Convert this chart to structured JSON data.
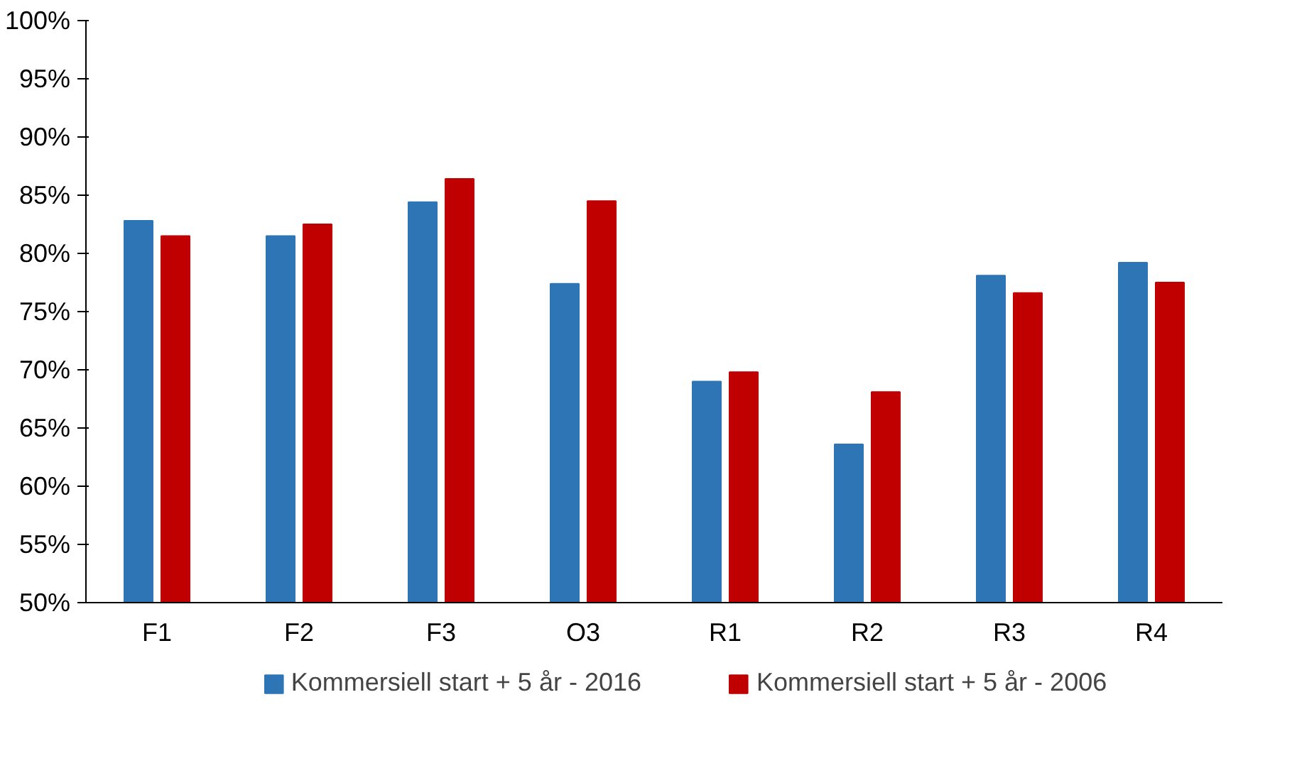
{
  "chart_data": {
    "type": "bar",
    "categories": [
      "F1",
      "F2",
      "F3",
      "O3",
      "R1",
      "R2",
      "R3",
      "R4"
    ],
    "series": [
      {
        "name": "Kommersiell start + 5 år - 2016",
        "color": "#2e75b6",
        "values": [
          82.8,
          81.5,
          84.4,
          77.4,
          69.0,
          63.6,
          78.1,
          79.2
        ]
      },
      {
        "name": "Kommersiell start + 5 år - 2006",
        "color": "#c00000",
        "values": [
          81.5,
          82.5,
          86.4,
          84.5,
          69.8,
          68.1,
          76.6,
          77.5
        ]
      }
    ],
    "ylim": [
      50,
      100
    ],
    "yticks": [
      {
        "value": 50,
        "label": "50%"
      },
      {
        "value": 55,
        "label": "55%"
      },
      {
        "value": 60,
        "label": "60%"
      },
      {
        "value": 65,
        "label": "65%"
      },
      {
        "value": 70,
        "label": "70%"
      },
      {
        "value": 75,
        "label": "75%"
      },
      {
        "value": 80,
        "label": "80%"
      },
      {
        "value": 85,
        "label": "85%"
      },
      {
        "value": 90,
        "label": "90%"
      },
      {
        "value": 95,
        "label": "95%"
      },
      {
        "value": 100,
        "label": "100%"
      }
    ],
    "grid": false,
    "legend": "bottom"
  }
}
